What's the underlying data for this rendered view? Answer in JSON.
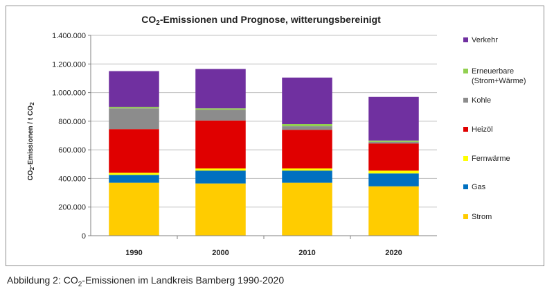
{
  "caption": {
    "prefix": "Abbildung 2: CO",
    "sub": "2",
    "suffix": "-Emissionen im Landkreis Bamberg 1990-2020"
  },
  "chart_data": {
    "type": "bar",
    "stacked": true,
    "title": {
      "prefix": "CO",
      "sub": "2",
      "suffix": "-Emissionen und Prognose, witterungsbereinigt"
    },
    "ylabel": {
      "prefix": "CO",
      "sub": "2",
      "middle": "-Emissionen / t CO",
      "sub2": "2"
    },
    "xlabel": "",
    "ylim": [
      0,
      1400000
    ],
    "yticks": [
      0,
      200000,
      400000,
      600000,
      800000,
      1000000,
      1200000,
      1400000
    ],
    "ytick_labels": [
      "0",
      "200.000",
      "400.000",
      "600.000",
      "800.000",
      "1.000.000",
      "1.200.000",
      "1.400.000"
    ],
    "grid": true,
    "legend_position": "right",
    "categories": [
      "1990",
      "2000",
      "2010",
      "2020"
    ],
    "series": [
      {
        "name": "Strom",
        "color": "#ffcc00",
        "values": [
          370000,
          365000,
          370000,
          345000
        ]
      },
      {
        "name": "Gas",
        "color": "#0070c0",
        "values": [
          55000,
          90000,
          85000,
          90000
        ]
      },
      {
        "name": "Fernwärme",
        "color": "#ffff00",
        "values": [
          15000,
          15000,
          15000,
          20000
        ]
      },
      {
        "name": "Heizöl",
        "color": "#e00000",
        "values": [
          305000,
          335000,
          270000,
          190000
        ]
      },
      {
        "name": "Kohle",
        "color": "#8c8c8c",
        "values": [
          145000,
          75000,
          25000,
          10000
        ]
      },
      {
        "name": "Erneuerbare\n(Strom+Wärme)",
        "color": "#92d050",
        "values": [
          10000,
          10000,
          15000,
          10000
        ]
      },
      {
        "name": "Verkehr",
        "color": "#7030a0",
        "values": [
          250000,
          275000,
          325000,
          305000
        ]
      }
    ],
    "legend_order": [
      "Verkehr",
      "Erneuerbare\n(Strom+Wärme)",
      "Kohle",
      "Heizöl",
      "Fernwärme",
      "Gas",
      "Strom"
    ]
  }
}
